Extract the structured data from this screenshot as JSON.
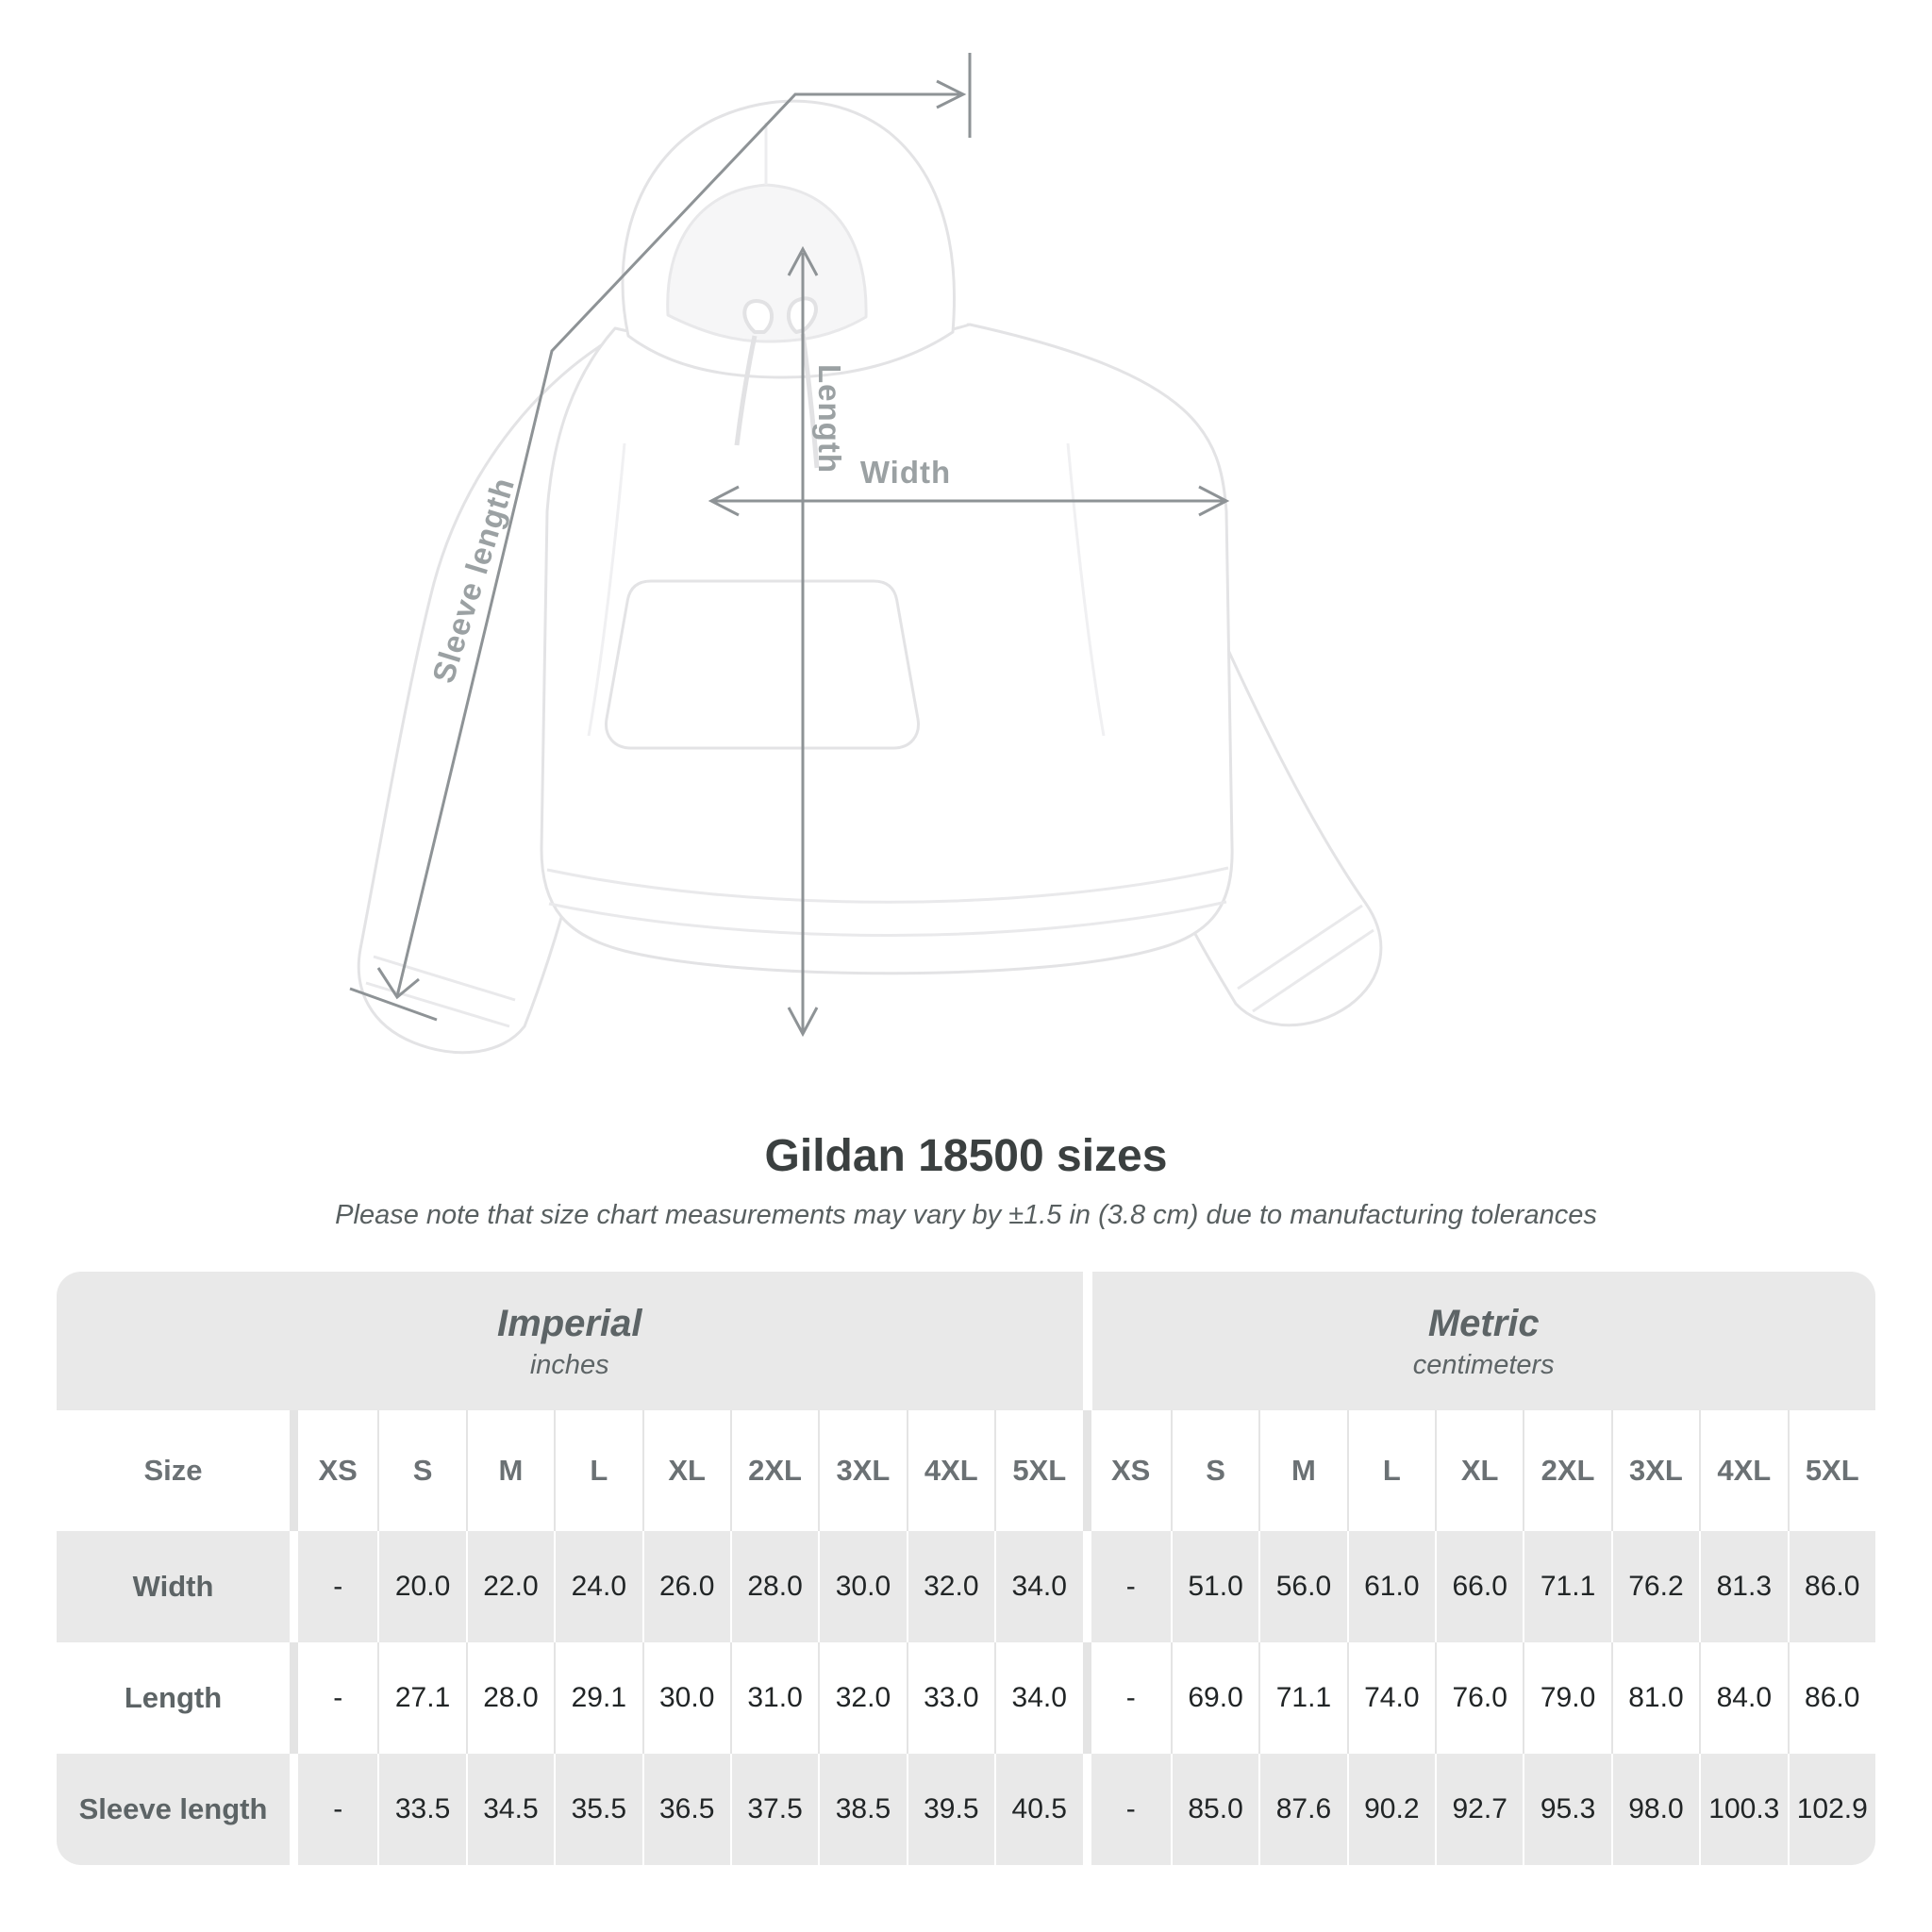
{
  "diagram": {
    "length_label": "Length",
    "width_label": "Width",
    "sleeve_label": "Sleeve length"
  },
  "header": {
    "title": "Gildan 18500 sizes",
    "note": "Please note that size chart measurements may vary by ±1.5 in (3.8 cm) due to manufacturing tolerances"
  },
  "table": {
    "groups": [
      {
        "label": "Imperial",
        "unit": "inches"
      },
      {
        "label": "Metric",
        "unit": "centimeters"
      }
    ],
    "size_header": "Size",
    "sizes": [
      "XS",
      "S",
      "M",
      "L",
      "XL",
      "2XL",
      "3XL",
      "4XL",
      "5XL"
    ],
    "rows": [
      {
        "label": "Width",
        "imperial": [
          "-",
          "20.0",
          "22.0",
          "24.0",
          "26.0",
          "28.0",
          "30.0",
          "32.0",
          "34.0"
        ],
        "metric": [
          "-",
          "51.0",
          "56.0",
          "61.0",
          "66.0",
          "71.1",
          "76.2",
          "81.3",
          "86.0"
        ]
      },
      {
        "label": "Length",
        "imperial": [
          "-",
          "27.1",
          "28.0",
          "29.1",
          "30.0",
          "31.0",
          "32.0",
          "33.0",
          "34.0"
        ],
        "metric": [
          "-",
          "69.0",
          "71.1",
          "74.0",
          "76.0",
          "79.0",
          "81.0",
          "84.0",
          "86.0"
        ]
      },
      {
        "label": "Sleeve length",
        "imperial": [
          "-",
          "33.5",
          "34.5",
          "35.5",
          "36.5",
          "37.5",
          "38.5",
          "39.5",
          "40.5"
        ],
        "metric": [
          "-",
          "85.0",
          "87.6",
          "90.2",
          "92.7",
          "95.3",
          "98.0",
          "100.3",
          "102.9"
        ]
      }
    ]
  },
  "colors": {
    "table_gray": "#e9e9e9",
    "annotation_line": "#8e9396",
    "annotation_text": "#9ba1a3",
    "title_text": "#3b4040",
    "note_text": "#585f60",
    "size_header_text": "#6b7174",
    "number_text": "#212526"
  },
  "chart_data": {
    "type": "table",
    "title": "Gildan 18500 sizes",
    "note": "Please note that size chart measurements may vary by ±1.5 in (3.8 cm) due to manufacturing tolerances",
    "column_groups": [
      {
        "label": "Imperial",
        "unit": "inches"
      },
      {
        "label": "Metric",
        "unit": "centimeters"
      }
    ],
    "sizes": [
      "XS",
      "S",
      "M",
      "L",
      "XL",
      "2XL",
      "3XL",
      "4XL",
      "5XL"
    ],
    "measurements": [
      {
        "label": "Width",
        "inches": [
          null,
          20.0,
          22.0,
          24.0,
          26.0,
          28.0,
          30.0,
          32.0,
          34.0
        ],
        "centimeters": [
          null,
          51.0,
          56.0,
          61.0,
          66.0,
          71.1,
          76.2,
          81.3,
          86.0
        ]
      },
      {
        "label": "Length",
        "inches": [
          null,
          27.1,
          28.0,
          29.1,
          30.0,
          31.0,
          32.0,
          33.0,
          34.0
        ],
        "centimeters": [
          null,
          69.0,
          71.1,
          74.0,
          76.0,
          79.0,
          81.0,
          84.0,
          86.0
        ]
      },
      {
        "label": "Sleeve length",
        "inches": [
          null,
          33.5,
          34.5,
          35.5,
          36.5,
          37.5,
          38.5,
          39.5,
          40.5
        ],
        "centimeters": [
          null,
          85.0,
          87.6,
          90.2,
          92.7,
          95.3,
          98.0,
          100.3,
          102.9
        ]
      }
    ]
  }
}
